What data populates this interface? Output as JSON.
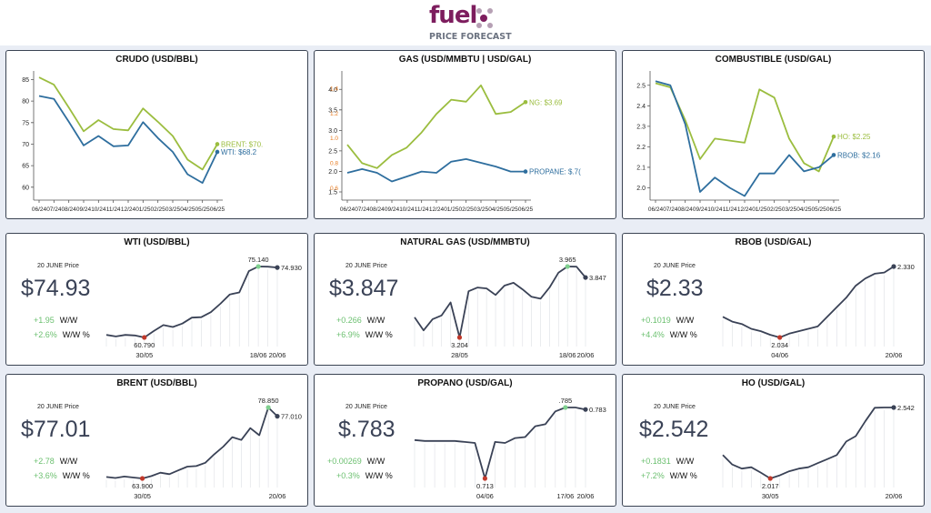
{
  "brand": {
    "logo_text": "fuel",
    "subtitle": "PRICE FORECAST"
  },
  "colors": {
    "green": "#9bbd3f",
    "blue": "#2e6e9e",
    "orange": "#e87a1e",
    "dark": "#3a4256",
    "up": "#6cc070",
    "low": "#c0392b",
    "high": "#7fd08f"
  },
  "forecast_panels": [
    {
      "title": "CRUDO (USD/BBL)"
    },
    {
      "title": "GAS (USD/MMBTU | USD/GAL)"
    },
    {
      "title": "COMBUSTIBLE (USD/GAL)"
    }
  ],
  "spark_panels": [
    {
      "title": "WTI (USD/BBL)",
      "date_label": "20 JUNE Price",
      "price": "$74.93",
      "ww_value": "+1.95",
      "ww_label": "W/W",
      "wwp_value": "+2.6%",
      "wwp_label": "W/W %"
    },
    {
      "title": "NATURAL GAS (USD/MMBTU)",
      "date_label": "20 JUNE Price",
      "price": "$3.847",
      "ww_value": "+0.266",
      "ww_label": "W/W",
      "wwp_value": "+6.9%",
      "wwp_label": "W/W %"
    },
    {
      "title": "RBOB (USD/GAL)",
      "date_label": "20 JUNE Price",
      "price": "$2.33",
      "ww_value": "+0.1019",
      "ww_label": "W/W",
      "wwp_value": "+4.4%",
      "wwp_label": "W/W %"
    },
    {
      "title": "BRENT (USD/BBL)",
      "date_label": "20 JUNE Price",
      "price": "$77.01",
      "ww_value": "+2.78",
      "ww_label": "W/W",
      "wwp_value": "+3.6%",
      "wwp_label": "W/W %"
    },
    {
      "title": "PROPANO (USD/GAL)",
      "date_label": "20 JUNE Price",
      "price": "$.783",
      "ww_value": "+0.00269",
      "ww_label": "W/W",
      "wwp_value": "+0.3%",
      "wwp_label": "W/W %"
    },
    {
      "title": "HO (USD/GAL)",
      "date_label": "20 JUNE Price",
      "price": "$2.542",
      "ww_value": "+0.1831",
      "ww_label": "W/W",
      "wwp_value": "+7.2%",
      "wwp_label": "W/W %"
    }
  ],
  "chart_data": [
    {
      "type": "line",
      "title": "CRUDO (USD/BBL)",
      "x": [
        "06/24",
        "07/24",
        "08/24",
        "09/24",
        "10/24",
        "11/24",
        "12/24",
        "01/25",
        "02/25",
        "03/25",
        "04/25",
        "05/25",
        "06/25"
      ],
      "ylim": [
        57,
        87
      ],
      "yticks": [
        60,
        65,
        70,
        75,
        80,
        85
      ],
      "grid": false,
      "series": [
        {
          "name": "BRENT",
          "color": "#9bbd3f",
          "end_label": "BRENT: $70.",
          "values": [
            85.5,
            83.8,
            78.5,
            73.0,
            75.6,
            73.5,
            73.2,
            78.3,
            75.2,
            71.9,
            66.4,
            64.1,
            70.0
          ]
        },
        {
          "name": "WTI",
          "color": "#2e6e9e",
          "end_label": "WTI: $68.2",
          "values": [
            81.2,
            80.5,
            75.2,
            69.7,
            71.9,
            69.5,
            69.7,
            75.1,
            71.4,
            68.2,
            63.0,
            61.0,
            68.2
          ]
        }
      ]
    },
    {
      "type": "line",
      "title": "GAS (USD/MMBTU | USD/GAL)",
      "x": [
        "06/24",
        "07/24",
        "08/24",
        "09/24",
        "10/24",
        "11/24",
        "12/24",
        "01/25",
        "02/25",
        "03/25",
        "04/25",
        "05/25",
        "06/25"
      ],
      "ylim": [
        1.3,
        4.45
      ],
      "yticks": [
        1.5,
        2.0,
        2.5,
        3.0,
        3.5,
        4.0
      ],
      "y2lim": [
        0.5,
        1.54
      ],
      "y2ticks": [
        0.6,
        0.8,
        1.0,
        1.2,
        1.4
      ],
      "y2color": "#e87a1e",
      "grid": false,
      "series": [
        {
          "name": "NG",
          "color": "#9bbd3f",
          "end_label": "NG: $3.69",
          "axis": "left",
          "values": [
            2.65,
            2.2,
            2.08,
            2.4,
            2.58,
            2.95,
            3.4,
            3.75,
            3.7,
            4.1,
            3.4,
            3.45,
            3.69
          ]
        },
        {
          "name": "PROPANE",
          "color": "#2e6e9e",
          "end_label": "PROPANE: $.7(",
          "axis": "right",
          "values": [
            0.72,
            0.75,
            0.72,
            0.65,
            0.69,
            0.73,
            0.72,
            0.81,
            0.83,
            0.8,
            0.77,
            0.73,
            0.73
          ]
        }
      ]
    },
    {
      "type": "line",
      "title": "COMBUSTIBLE (USD/GAL)",
      "x": [
        "06/24",
        "07/24",
        "08/24",
        "09/24",
        "10/24",
        "11/24",
        "12/24",
        "01/25",
        "02/25",
        "03/25",
        "04/25",
        "05/25",
        "06/25"
      ],
      "ylim": [
        1.94,
        2.57
      ],
      "yticks": [
        2.0,
        2.1,
        2.2,
        2.3,
        2.4,
        2.5
      ],
      "grid": false,
      "series": [
        {
          "name": "HO",
          "color": "#9bbd3f",
          "end_label": "HO: $2.25",
          "values": [
            2.51,
            2.49,
            2.33,
            2.14,
            2.24,
            2.23,
            2.22,
            2.48,
            2.44,
            2.24,
            2.12,
            2.08,
            2.25
          ]
        },
        {
          "name": "RBOB",
          "color": "#2e6e9e",
          "end_label": "RBOB: $2.16",
          "values": [
            2.52,
            2.5,
            2.31,
            1.98,
            2.05,
            2.0,
            1.96,
            2.07,
            2.07,
            2.16,
            2.08,
            2.1,
            2.16
          ]
        }
      ]
    },
    {
      "type": "line",
      "title": "WTI (USD/BBL)",
      "values": [
        61.3,
        61.0,
        61.3,
        61.2,
        60.79,
        62.1,
        63.3,
        62.9,
        63.6,
        64.8,
        64.9,
        65.9,
        67.6,
        69.5,
        69.9,
        74.2,
        75.14,
        75.1,
        74.93
      ],
      "low": {
        "index": 4,
        "label": "60.790"
      },
      "high": {
        "index": 16,
        "label": "75.140"
      },
      "last": {
        "label": "74.930"
      },
      "x_labels": [
        {
          "index": 4,
          "text": "30/05"
        },
        {
          "index": 16,
          "text": "18/06"
        },
        {
          "index": 18,
          "text": "20/06"
        }
      ]
    },
    {
      "type": "line",
      "title": "NATURAL GAS (USD/MMBTU)",
      "values": [
        3.42,
        3.28,
        3.4,
        3.44,
        3.58,
        3.204,
        3.7,
        3.74,
        3.73,
        3.66,
        3.76,
        3.79,
        3.72,
        3.64,
        3.62,
        3.74,
        3.9,
        3.965,
        3.963,
        3.847
      ],
      "low": {
        "index": 5,
        "label": "3.204"
      },
      "high": {
        "index": 17,
        "label": "3.965"
      },
      "last": {
        "label": "3.847"
      },
      "x_labels": [
        {
          "index": 5,
          "text": "28/05"
        },
        {
          "index": 17,
          "text": "18/06"
        },
        {
          "index": 19,
          "text": "20/06"
        }
      ]
    },
    {
      "type": "line",
      "title": "RBOB (USD/GAL)",
      "values": [
        2.12,
        2.1,
        2.09,
        2.07,
        2.06,
        2.045,
        2.034,
        2.05,
        2.06,
        2.07,
        2.08,
        2.12,
        2.16,
        2.2,
        2.25,
        2.28,
        2.3,
        2.305,
        2.33
      ],
      "low": {
        "index": 6,
        "label": "2.034"
      },
      "high": null,
      "last": {
        "label": "2.330"
      },
      "x_labels": [
        {
          "index": 6,
          "text": "04/06"
        },
        {
          "index": 18,
          "text": "20/06"
        }
      ]
    },
    {
      "type": "line",
      "title": "BRENT (USD/BBL)",
      "values": [
        64.2,
        64.0,
        64.3,
        64.1,
        63.9,
        64.4,
        65.1,
        64.8,
        65.6,
        66.4,
        66.5,
        67.2,
        69.0,
        70.6,
        72.6,
        72.0,
        74.5,
        73.0,
        78.85,
        77.01
      ],
      "low": {
        "index": 4,
        "label": "63.900"
      },
      "high": {
        "index": 18,
        "label": "78.850"
      },
      "last": {
        "label": "77.010"
      },
      "x_labels": [
        {
          "index": 4,
          "text": "30/05"
        },
        {
          "index": 19,
          "text": "20/06"
        }
      ]
    },
    {
      "type": "line",
      "title": "PROPANO (USD/GAL)",
      "values": [
        0.752,
        0.751,
        0.751,
        0.751,
        0.751,
        0.75,
        0.749,
        0.713,
        0.75,
        0.749,
        0.754,
        0.755,
        0.766,
        0.768,
        0.781,
        0.785,
        0.785,
        0.783
      ],
      "low": {
        "index": 7,
        "label": "0.713"
      },
      "high": {
        "index": 15,
        "label": ".785"
      },
      "last": {
        "label": "0.783"
      },
      "x_labels": [
        {
          "index": 7,
          "text": "04/06"
        },
        {
          "index": 15,
          "text": "17/06"
        },
        {
          "index": 17,
          "text": "20/06"
        }
      ]
    },
    {
      "type": "line",
      "title": "HO (USD/GAL)",
      "values": [
        2.19,
        2.12,
        2.09,
        2.1,
        2.06,
        2.017,
        2.04,
        2.07,
        2.09,
        2.1,
        2.13,
        2.16,
        2.19,
        2.29,
        2.33,
        2.44,
        2.54,
        2.542,
        2.542
      ],
      "low": {
        "index": 5,
        "label": "2.017"
      },
      "high": null,
      "last": {
        "label": "2.542"
      },
      "x_labels": [
        {
          "index": 5,
          "text": "30/05"
        },
        {
          "index": 18,
          "text": "20/06"
        }
      ]
    }
  ]
}
